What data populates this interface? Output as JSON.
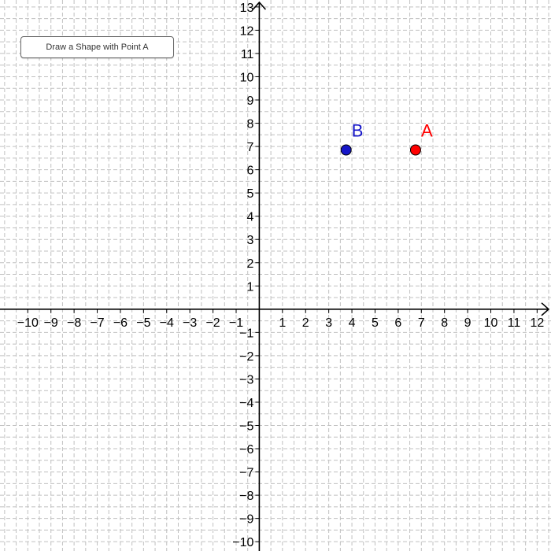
{
  "view": {
    "x_range": [
      -11.2,
      12.6
    ],
    "y_range": [
      -10.4,
      13.3
    ]
  },
  "axes": {
    "x_ticks": [
      -10,
      -9,
      -8,
      -7,
      -6,
      -5,
      -4,
      -3,
      -2,
      -1,
      1,
      2,
      3,
      4,
      5,
      6,
      7,
      8,
      9,
      10,
      11,
      12
    ],
    "y_ticks": [
      -10,
      -9,
      -8,
      -7,
      -6,
      -5,
      -4,
      -3,
      -2,
      -1,
      1,
      2,
      3,
      4,
      5,
      6,
      7,
      8,
      9,
      10,
      11,
      12,
      13
    ],
    "minus_sign": "−"
  },
  "points": [
    {
      "id": "A",
      "label": "A",
      "x": 6.75,
      "y": 6.85,
      "color": "#ff0000"
    },
    {
      "id": "B",
      "label": "B",
      "x": 3.75,
      "y": 6.85,
      "color": "#1515c8"
    }
  ],
  "button": {
    "label": "Draw a Shape with Point A"
  },
  "colors": {
    "grid": "#c0c0c0",
    "axis": "#000000"
  }
}
